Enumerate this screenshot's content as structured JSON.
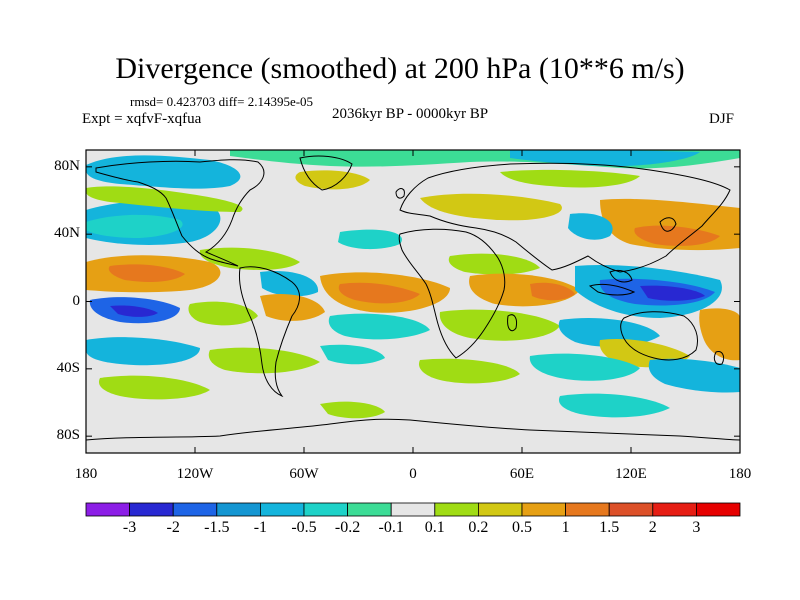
{
  "title": "Divergence (smoothed) at 200 hPa (10**6 m/s)",
  "stats": "rmsd= 0.423703 diff= 2.14395e-05",
  "experiment": "Expt = xqfvF-xqfua",
  "period": "2036kyr BP - 0000kyr BP",
  "season": "DJF",
  "map": {
    "lon_range": [
      -180,
      180
    ],
    "lat_range": [
      -90,
      90
    ],
    "lat_ticks": [
      {
        "value": 80,
        "label": "80N"
      },
      {
        "value": 40,
        "label": "40N"
      },
      {
        "value": 0,
        "label": "0"
      },
      {
        "value": -40,
        "label": "40S"
      },
      {
        "value": -80,
        "label": "80S"
      }
    ],
    "lon_ticks": [
      {
        "value": -180,
        "label": "180"
      },
      {
        "value": -120,
        "label": "120W"
      },
      {
        "value": -60,
        "label": "60W"
      },
      {
        "value": 0,
        "label": "0"
      },
      {
        "value": 60,
        "label": "60E"
      },
      {
        "value": 120,
        "label": "120E"
      },
      {
        "value": 180,
        "label": "180"
      }
    ],
    "background_color": "#e6e6e6",
    "coastline_color": "#000000"
  },
  "colorbar": {
    "levels": [
      "-3",
      "-2",
      "-1.5",
      "-1",
      "-0.5",
      "-0.2",
      "-0.1",
      "0.1",
      "0.2",
      "0.5",
      "1",
      "1.5",
      "2",
      "3"
    ],
    "colors": [
      "#8c1ee6",
      "#2828d2",
      "#1e64e6",
      "#1496d2",
      "#14b4dc",
      "#1ed2c8",
      "#3cdc96",
      "#e6e6e6",
      "#a0dc14",
      "#d2c814",
      "#e6a014",
      "#e6781e",
      "#dc5028",
      "#e61e14",
      "#e60000"
    ]
  }
}
